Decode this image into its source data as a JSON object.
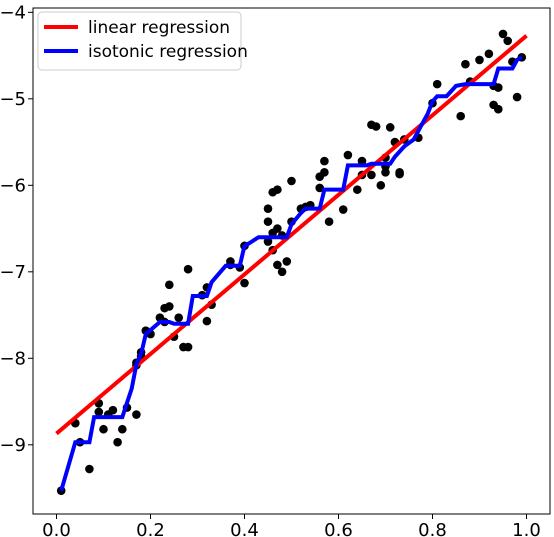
{
  "chart_data": {
    "type": "scatter",
    "title": "",
    "xlabel": "",
    "ylabel": "",
    "xlim": [
      -0.05,
      1.05
    ],
    "ylim": [
      -9.8,
      -3.95
    ],
    "x_ticks": [
      0.0,
      0.2,
      0.4,
      0.6,
      0.8,
      1.0
    ],
    "x_tick_labels": [
      "0.0",
      "0.2",
      "0.4",
      "0.6",
      "0.8",
      "1.0"
    ],
    "y_ticks": [
      -9,
      -8,
      -7,
      -6,
      -5,
      -4
    ],
    "y_tick_labels": [
      "−9",
      "−8",
      "−7",
      "−6",
      "−5",
      "−4"
    ],
    "grid": false,
    "legend": {
      "position": "top-left",
      "entries": [
        {
          "label": "linear regression",
          "color": "#ff0000"
        },
        {
          "label": "isotonic regression",
          "color": "#0000ff"
        }
      ]
    },
    "series": [
      {
        "name": "",
        "type": "scatter",
        "color": "#000000",
        "points": [
          [
            0.01,
            -9.53
          ],
          [
            0.04,
            -8.75
          ],
          [
            0.05,
            -8.97
          ],
          [
            0.07,
            -9.28
          ],
          [
            0.09,
            -8.52
          ],
          [
            0.09,
            -8.62
          ],
          [
            0.1,
            -8.82
          ],
          [
            0.11,
            -8.65
          ],
          [
            0.12,
            -8.6
          ],
          [
            0.13,
            -8.97
          ],
          [
            0.14,
            -8.82
          ],
          [
            0.15,
            -8.57
          ],
          [
            0.17,
            -8.65
          ],
          [
            0.17,
            -8.05
          ],
          [
            0.17,
            -8.08
          ],
          [
            0.18,
            -7.98
          ],
          [
            0.18,
            -7.93
          ],
          [
            0.19,
            -7.68
          ],
          [
            0.2,
            -7.72
          ],
          [
            0.22,
            -7.53
          ],
          [
            0.23,
            -7.42
          ],
          [
            0.23,
            -7.58
          ],
          [
            0.24,
            -7.15
          ],
          [
            0.24,
            -7.4
          ],
          [
            0.25,
            -7.75
          ],
          [
            0.26,
            -7.53
          ],
          [
            0.27,
            -7.87
          ],
          [
            0.28,
            -6.97
          ],
          [
            0.28,
            -7.87
          ],
          [
            0.31,
            -7.27
          ],
          [
            0.32,
            -7.18
          ],
          [
            0.32,
            -7.57
          ],
          [
            0.33,
            -7.38
          ],
          [
            0.37,
            -6.88
          ],
          [
            0.37,
            -6.92
          ],
          [
            0.39,
            -6.95
          ],
          [
            0.4,
            -6.7
          ],
          [
            0.4,
            -7.13
          ],
          [
            0.45,
            -6.27
          ],
          [
            0.45,
            -6.42
          ],
          [
            0.45,
            -6.65
          ],
          [
            0.46,
            -6.08
          ],
          [
            0.46,
            -6.55
          ],
          [
            0.46,
            -6.75
          ],
          [
            0.47,
            -6.05
          ],
          [
            0.47,
            -6.5
          ],
          [
            0.47,
            -6.92
          ],
          [
            0.48,
            -7.0
          ],
          [
            0.48,
            -6.58
          ],
          [
            0.49,
            -6.88
          ],
          [
            0.5,
            -5.95
          ],
          [
            0.5,
            -6.42
          ],
          [
            0.52,
            -6.27
          ],
          [
            0.53,
            -6.25
          ],
          [
            0.54,
            -6.23
          ],
          [
            0.56,
            -5.9
          ],
          [
            0.56,
            -6.03
          ],
          [
            0.57,
            -5.85
          ],
          [
            0.57,
            -5.72
          ],
          [
            0.58,
            -6.42
          ],
          [
            0.61,
            -6.28
          ],
          [
            0.62,
            -5.65
          ],
          [
            0.64,
            -6.05
          ],
          [
            0.65,
            -5.72
          ],
          [
            0.65,
            -5.88
          ],
          [
            0.67,
            -5.3
          ],
          [
            0.67,
            -5.88
          ],
          [
            0.68,
            -5.32
          ],
          [
            0.69,
            -6.0
          ],
          [
            0.7,
            -5.78
          ],
          [
            0.7,
            -5.85
          ],
          [
            0.7,
            -5.68
          ],
          [
            0.71,
            -5.33
          ],
          [
            0.72,
            -5.5
          ],
          [
            0.73,
            -5.85
          ],
          [
            0.73,
            -5.87
          ],
          [
            0.74,
            -5.47
          ],
          [
            0.77,
            -5.45
          ],
          [
            0.8,
            -5.05
          ],
          [
            0.81,
            -4.83
          ],
          [
            0.86,
            -5.2
          ],
          [
            0.87,
            -4.6
          ],
          [
            0.88,
            -4.8
          ],
          [
            0.9,
            -4.55
          ],
          [
            0.92,
            -4.48
          ],
          [
            0.93,
            -5.07
          ],
          [
            0.93,
            -4.85
          ],
          [
            0.94,
            -5.12
          ],
          [
            0.94,
            -4.87
          ],
          [
            0.95,
            -4.25
          ],
          [
            0.96,
            -4.33
          ],
          [
            0.97,
            -4.57
          ],
          [
            0.98,
            -4.98
          ],
          [
            0.99,
            -4.52
          ]
        ]
      },
      {
        "name": "linear regression",
        "type": "line",
        "color": "#ff0000",
        "points": [
          [
            0.0,
            -8.87
          ],
          [
            1.0,
            -4.27
          ]
        ]
      },
      {
        "name": "isotonic regression",
        "type": "line",
        "color": "#0000ff",
        "points": [
          [
            0.01,
            -9.53
          ],
          [
            0.04,
            -8.97
          ],
          [
            0.07,
            -8.97
          ],
          [
            0.08,
            -8.68
          ],
          [
            0.14,
            -8.68
          ],
          [
            0.16,
            -8.35
          ],
          [
            0.17,
            -8.07
          ],
          [
            0.18,
            -7.95
          ],
          [
            0.19,
            -7.72
          ],
          [
            0.22,
            -7.58
          ],
          [
            0.24,
            -7.58
          ],
          [
            0.25,
            -7.6
          ],
          [
            0.28,
            -7.6
          ],
          [
            0.29,
            -7.28
          ],
          [
            0.32,
            -7.28
          ],
          [
            0.33,
            -7.12
          ],
          [
            0.36,
            -6.93
          ],
          [
            0.39,
            -6.93
          ],
          [
            0.4,
            -6.7
          ],
          [
            0.41,
            -6.67
          ],
          [
            0.43,
            -6.6
          ],
          [
            0.49,
            -6.6
          ],
          [
            0.5,
            -6.45
          ],
          [
            0.52,
            -6.32
          ],
          [
            0.53,
            -6.27
          ],
          [
            0.56,
            -6.27
          ],
          [
            0.57,
            -6.05
          ],
          [
            0.61,
            -6.05
          ],
          [
            0.62,
            -5.77
          ],
          [
            0.66,
            -5.77
          ],
          [
            0.67,
            -5.75
          ],
          [
            0.71,
            -5.75
          ],
          [
            0.72,
            -5.67
          ],
          [
            0.74,
            -5.55
          ],
          [
            0.76,
            -5.47
          ],
          [
            0.79,
            -5.17
          ],
          [
            0.8,
            -5.03
          ],
          [
            0.81,
            -4.97
          ],
          [
            0.83,
            -4.97
          ],
          [
            0.85,
            -4.85
          ],
          [
            0.87,
            -4.83
          ],
          [
            0.93,
            -4.83
          ],
          [
            0.94,
            -4.65
          ],
          [
            0.97,
            -4.65
          ],
          [
            0.98,
            -4.55
          ],
          [
            0.99,
            -4.52
          ]
        ]
      }
    ]
  }
}
